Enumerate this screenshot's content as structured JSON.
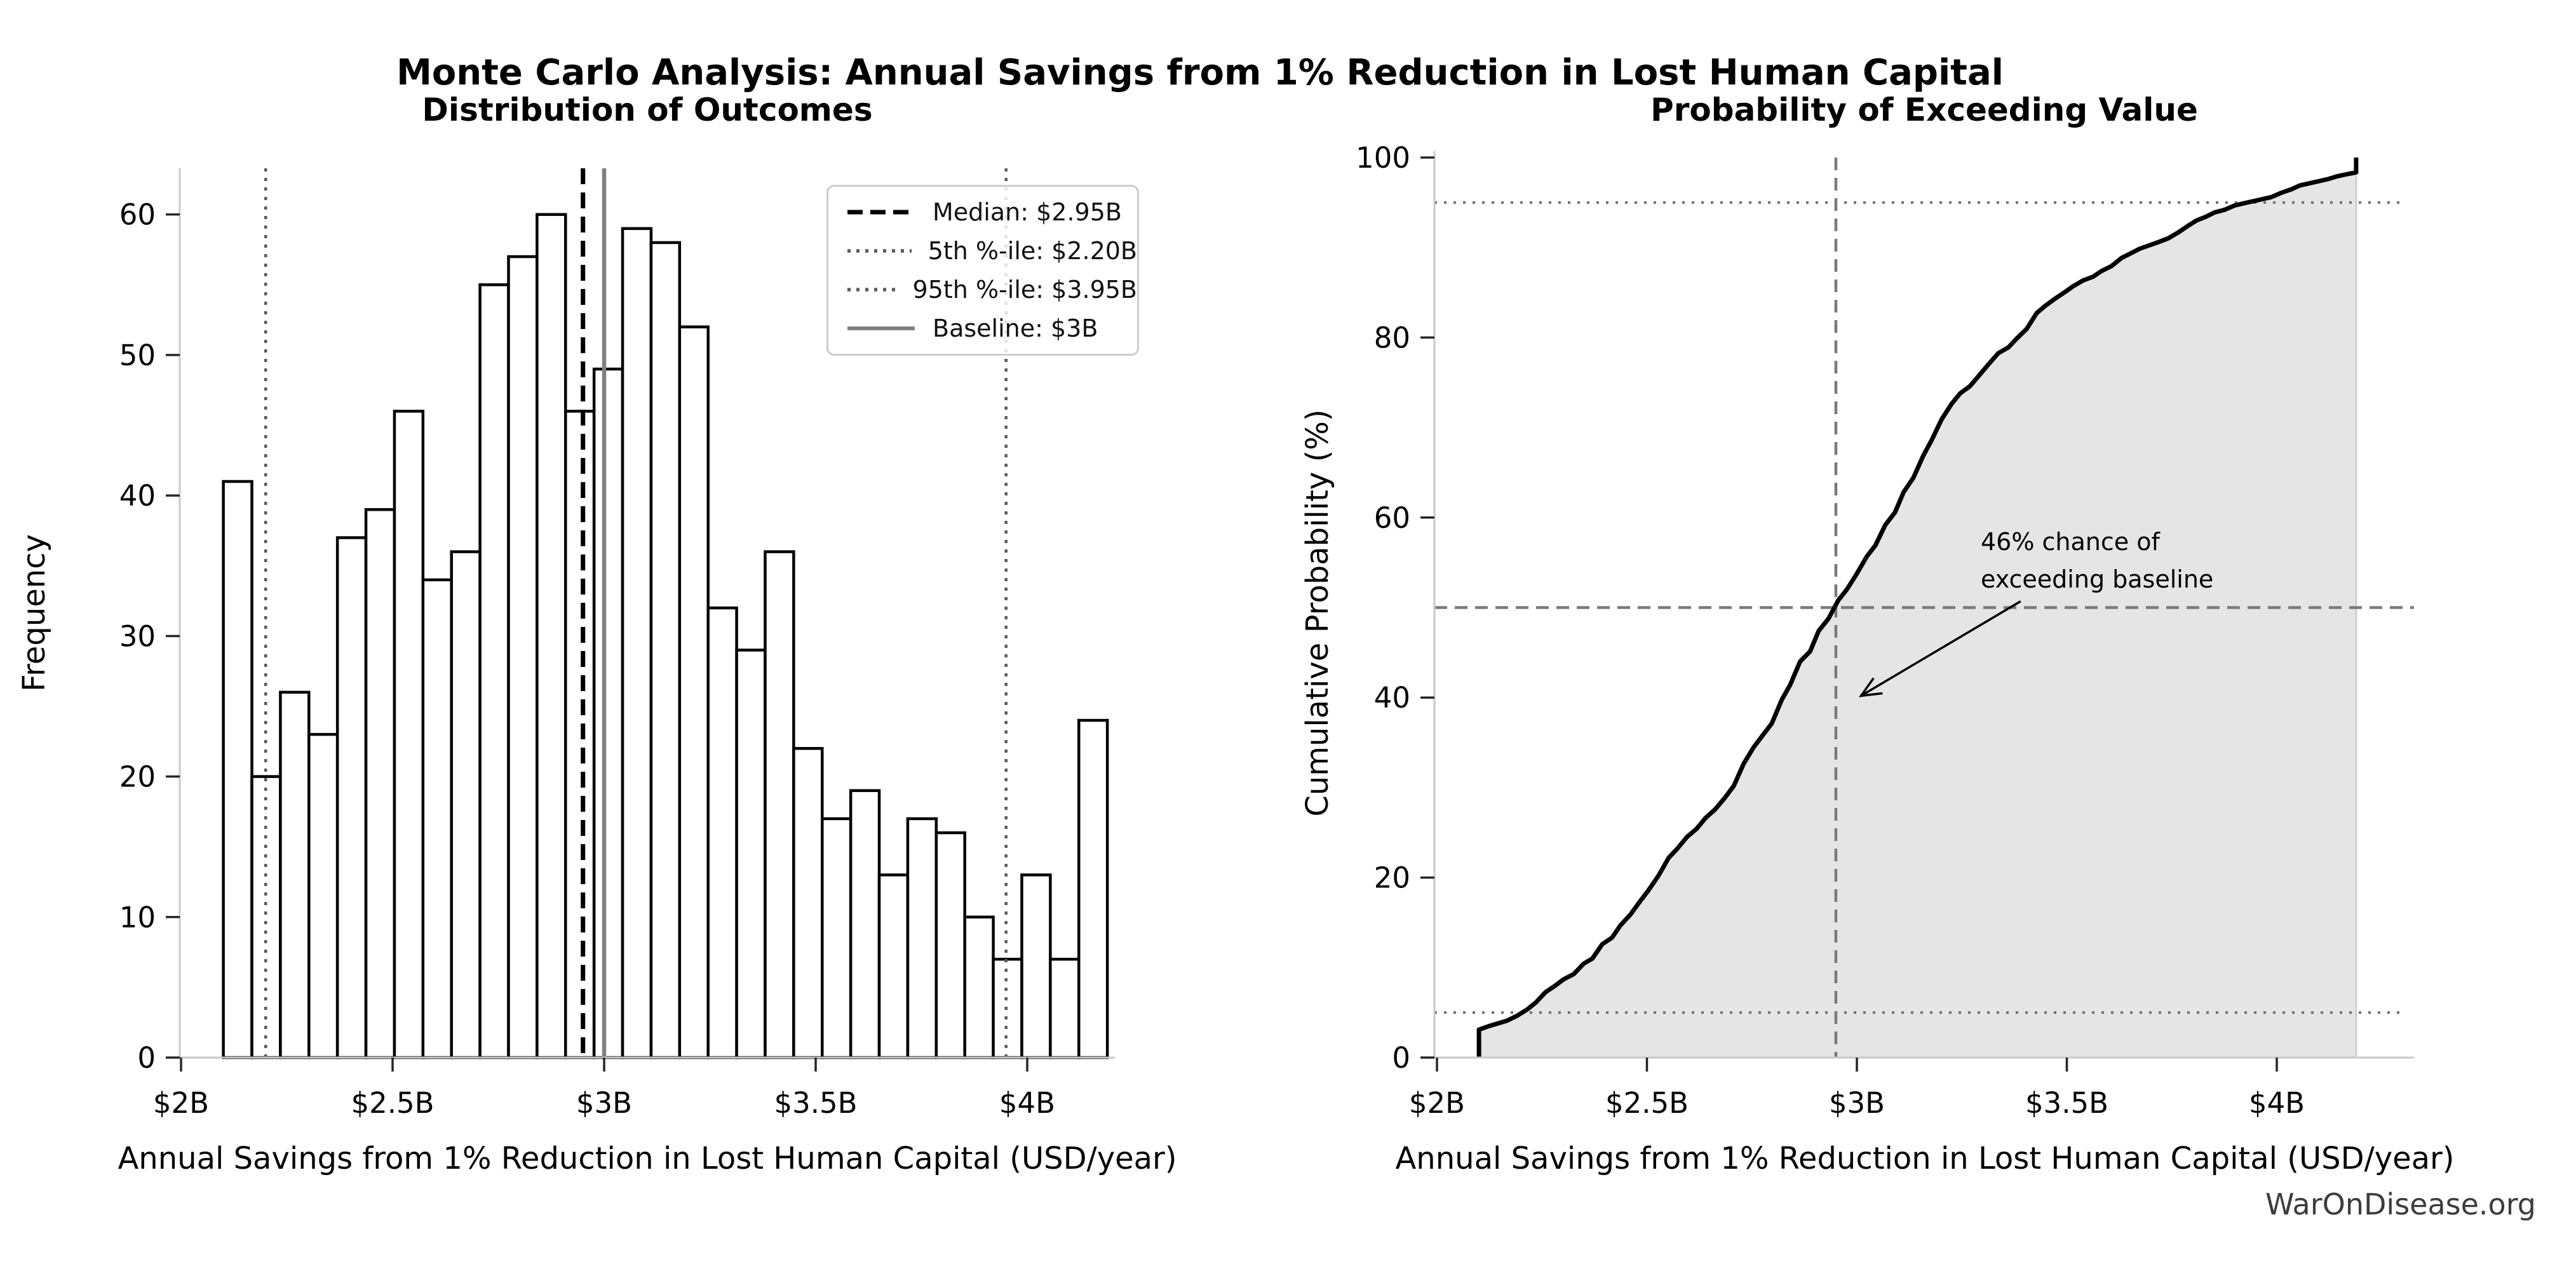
{
  "figure": {
    "suptitle": "Monte Carlo Analysis: Annual Savings from 1% Reduction in Lost Human Capital",
    "watermark": "WarOnDisease.org"
  },
  "left_chart": {
    "title": "Distribution of Outcomes",
    "xlabel": "Annual Savings from 1% Reduction in Lost Human Capital (USD/year)",
    "ylabel": "Frequency",
    "x_tick_labels": [
      "$2B",
      "$2.5B",
      "$3B",
      "$3.5B",
      "$4B"
    ],
    "x_tick_values": [
      2,
      2.5,
      3,
      3.5,
      4
    ],
    "y_tick_labels": [
      "0",
      "10",
      "20",
      "30",
      "40",
      "50",
      "60"
    ],
    "y_tick_values": [
      0,
      10,
      20,
      30,
      40,
      50,
      60
    ],
    "ref_lines": [
      {
        "name": "median-line",
        "value": 2.95,
        "style": "dashed",
        "color": "#000000"
      },
      {
        "name": "percentile-5-line",
        "value": 2.2,
        "style": "dotted",
        "color": "#5a5a5a"
      },
      {
        "name": "percentile-95-line",
        "value": 3.95,
        "style": "dotted",
        "color": "#5a5a5a"
      },
      {
        "name": "baseline-line",
        "value": 3.0,
        "style": "solid",
        "color": "#808080"
      }
    ]
  },
  "legend": {
    "items": [
      {
        "label": "Median: $2.95B",
        "style": "dashed",
        "color": "#000000"
      },
      {
        "label": "5th %-ile: $2.20B",
        "style": "dotted",
        "color": "#5a5a5a"
      },
      {
        "label": "95th %-ile: $3.95B",
        "style": "dotted",
        "color": "#5a5a5a"
      },
      {
        "label": "Baseline: $3B",
        "style": "solid",
        "color": "#808080"
      }
    ]
  },
  "right_chart": {
    "title": "Probability of Exceeding Value",
    "xlabel": "Annual Savings from 1% Reduction in Lost Human Capital (USD/year)",
    "ylabel": "Cumulative Probability (%)",
    "x_tick_labels": [
      "$2B",
      "$2.5B",
      "$3B",
      "$3.5B",
      "$4B"
    ],
    "x_tick_values": [
      2,
      2.5,
      3,
      3.5,
      4
    ],
    "y_tick_labels": [
      "0",
      "20",
      "40",
      "60",
      "80",
      "100"
    ],
    "y_tick_values": [
      0,
      20,
      40,
      60,
      80,
      100
    ],
    "dotted_h_values": [
      5,
      95
    ],
    "dashed_h_value": 50,
    "dashed_v_value": 2.95,
    "fill_color": "#e5e5e5",
    "curve_color": "#000000"
  },
  "annotation": {
    "line1": "46% chance of",
    "line2": "exceeding baseline",
    "arrow_from": [
      3.39,
      50.7
    ],
    "arrow_to": [
      3.01,
      40.2
    ]
  },
  "chart_data": [
    {
      "type": "bar",
      "subtype": "histogram",
      "title": "Distribution of Outcomes",
      "xlabel": "Annual Savings from 1% Reduction in Lost Human Capital (USD/year)",
      "ylabel": "Frequency",
      "bin_start": 2.1,
      "bin_width": 0.0674,
      "counts": [
        41,
        20,
        26,
        23,
        37,
        39,
        46,
        34,
        36,
        55,
        57,
        60,
        46,
        49,
        59,
        58,
        52,
        32,
        29,
        36,
        22,
        17,
        19,
        13,
        17,
        16,
        10,
        7,
        13,
        7,
        24
      ],
      "xlim": [
        1.99,
        4.21
      ],
      "ylim": [
        0,
        63.3
      ],
      "grid": false,
      "bar_fill": "#ffffff",
      "bar_edge": "#000000",
      "ref_lines": [
        {
          "label": "Median: $2.95B",
          "x": 2.95
        },
        {
          "label": "5th %-ile: $2.20B",
          "x": 2.2
        },
        {
          "label": "95th %-ile: $3.95B",
          "x": 3.95
        },
        {
          "label": "Baseline: $3B",
          "x": 3.0
        }
      ]
    },
    {
      "type": "line",
      "subtype": "empirical-cdf",
      "title": "Probability of Exceeding Value",
      "xlabel": "Annual Savings from 1% Reduction in Lost Human Capital (USD/year)",
      "ylabel": "Cumulative Probability (%)",
      "x": [
        2.1,
        2.167,
        2.235,
        2.302,
        2.37,
        2.437,
        2.504,
        2.572,
        2.639,
        2.707,
        2.774,
        2.841,
        2.909,
        2.976,
        3.044,
        3.111,
        3.178,
        3.246,
        3.313,
        3.381,
        3.448,
        3.515,
        3.583,
        3.65,
        3.718,
        3.785,
        3.852,
        3.92,
        3.987,
        4.055,
        4.122,
        4.189
      ],
      "y": [
        0,
        4.1,
        6.1,
        8.7,
        11,
        14.7,
        18.6,
        23.2,
        26.6,
        30.2,
        35.7,
        41.4,
        47.4,
        52,
        56.9,
        62.8,
        68.6,
        73.8,
        77,
        79.9,
        83.5,
        85.7,
        87.4,
        89.3,
        90.6,
        92.3,
        93.9,
        94.9,
        95.6,
        96.9,
        97.6,
        100
      ],
      "start_jump_to": 3.1,
      "xlim": [
        1.99,
        4.33
      ],
      "ylim": [
        0,
        100
      ],
      "reference": {
        "dotted_h": [
          5,
          95
        ],
        "dashed_h": 50,
        "dashed_v": 2.95
      },
      "annotation": "46% chance of exceeding baseline"
    }
  ]
}
